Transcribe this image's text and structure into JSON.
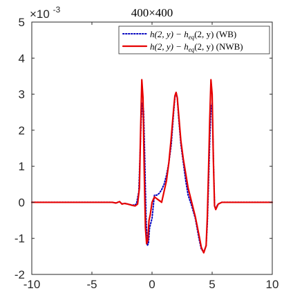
{
  "chart_data": {
    "type": "line",
    "title": "400×400",
    "xlabel": "",
    "ylabel": "",
    "xlim": [
      -10,
      10
    ],
    "ylim": [
      -2,
      5
    ],
    "y_scale_factor_label": "×10",
    "y_scale_factor_exponent": "-3",
    "x_ticks": [
      "-10",
      "-5",
      "0",
      "5",
      "10"
    ],
    "x_tick_values": [
      -10,
      -5,
      0,
      5,
      10
    ],
    "y_ticks": [
      "-2",
      "-1",
      "0",
      "1",
      "2",
      "3",
      "4",
      "5"
    ],
    "y_tick_values": [
      -2,
      -1,
      0,
      1,
      2,
      3,
      4,
      5
    ],
    "grid": false,
    "legend_position": "top-right",
    "series": [
      {
        "name": "h(2, y) − h_eq(2, y) (WB)",
        "legend_math": "h(2, y) − h",
        "legend_sub": "eq",
        "legend_rest": "(2, y) (WB)",
        "color": "#0000bf",
        "style": "dotted",
        "x": [
          -10,
          -3.3,
          -3.0,
          -2.7,
          -2.5,
          -2.2,
          -2.0,
          -1.6,
          -1.3,
          -1.1,
          -1.0,
          -0.9,
          -0.8,
          -0.7,
          -0.6,
          -0.5,
          -0.4,
          -0.3,
          -0.2,
          0.0,
          0.2,
          0.4,
          0.6,
          0.8,
          1.0,
          1.2,
          1.4,
          1.6,
          1.8,
          1.9,
          2.0,
          2.1,
          2.2,
          2.4,
          2.6,
          2.8,
          3.0,
          3.3,
          3.6,
          3.9,
          4.1,
          4.3,
          4.5,
          4.6,
          4.7,
          4.8,
          4.9,
          5.0,
          5.1,
          5.2,
          5.3,
          5.5,
          5.8,
          6.2,
          10
        ],
        "y": [
          0,
          0,
          -0.02,
          0.02,
          -0.04,
          -0.03,
          -0.05,
          -0.08,
          -0.05,
          0.3,
          1.3,
          2.3,
          2.75,
          2.55,
          1.2,
          -0.4,
          -1.2,
          -1.15,
          -0.7,
          -0.45,
          0.2,
          0.2,
          0.25,
          0.35,
          0.5,
          0.75,
          1.1,
          1.6,
          2.5,
          2.9,
          3.05,
          2.9,
          2.4,
          1.6,
          1.1,
          0.6,
          0.2,
          -0.1,
          -0.45,
          -1.0,
          -1.3,
          -1.38,
          -1.2,
          -0.6,
          0.5,
          1.7,
          2.6,
          2.75,
          1.3,
          -0.1,
          -0.15,
          -0.05,
          0,
          0,
          0
        ]
      },
      {
        "name": "h(2, y) − h_eq(2, y) (NWB)",
        "legend_math": "h(2, y) − h",
        "legend_sub": "eq",
        "legend_rest": "(2, y) (NWB)",
        "color": "#e60000",
        "style": "solid",
        "x": [
          -10,
          -3.3,
          -3.0,
          -2.7,
          -2.5,
          -2.3,
          -2.0,
          -1.7,
          -1.4,
          -1.2,
          -1.05,
          -0.95,
          -0.85,
          -0.75,
          -0.65,
          -0.55,
          -0.45,
          -0.35,
          -0.25,
          -0.15,
          0.0,
          0.2,
          0.4,
          0.6,
          0.8,
          1.0,
          1.2,
          1.4,
          1.6,
          1.8,
          1.9,
          2.0,
          2.1,
          2.2,
          2.4,
          2.6,
          2.8,
          3.0,
          3.3,
          3.6,
          3.9,
          4.1,
          4.3,
          4.5,
          4.6,
          4.7,
          4.8,
          4.9,
          5.0,
          5.1,
          5.2,
          5.3,
          5.5,
          5.8,
          6.2,
          10
        ],
        "y": [
          0,
          0,
          -0.02,
          0.02,
          -0.05,
          -0.03,
          -0.05,
          -0.08,
          -0.1,
          -0.05,
          0.4,
          2.0,
          3.4,
          2.9,
          0.9,
          -0.7,
          -1.15,
          -1.05,
          -0.5,
          -0.35,
          0.0,
          0.15,
          0.1,
          0.05,
          0.0,
          0.3,
          0.6,
          1.1,
          1.8,
          2.6,
          2.95,
          3.05,
          2.9,
          2.5,
          1.7,
          1.2,
          0.8,
          0.4,
          0.0,
          -0.4,
          -0.9,
          -1.25,
          -1.4,
          -1.2,
          -0.4,
          0.9,
          2.3,
          3.4,
          3.0,
          1.2,
          -0.1,
          -0.2,
          -0.05,
          0,
          0,
          0
        ]
      }
    ]
  }
}
